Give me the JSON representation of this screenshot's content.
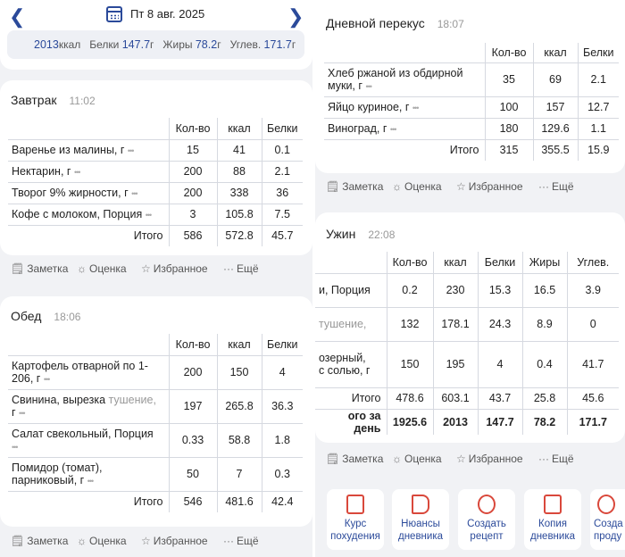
{
  "header": {
    "date": "Пт 8 авг. 2025",
    "summary": {
      "kcal_value": "2013",
      "kcal_unit": "ккал",
      "protein_label": "Белки",
      "protein_value": "147.7",
      "protein_unit": "г",
      "fat_label": "Жиры",
      "fat_value": "78.2",
      "fat_unit": "г",
      "carbs_label": "Углев.",
      "carbs_value": "171.7",
      "carbs_unit": "г"
    }
  },
  "columns": {
    "qty": "Кол-во",
    "kcal": "ккал",
    "protein": "Белки",
    "fat": "Жиры",
    "carbs": "Углев.",
    "total": "Итого",
    "day_total": "ого за день"
  },
  "actions": {
    "note": "Заметка",
    "rate": "Оценка",
    "favorite": "Избранное",
    "more": "Ещё"
  },
  "breakfast": {
    "title": "Завтрак",
    "time": "11:02",
    "rows": [
      {
        "name": "Варенье из малины, г",
        "qty": "15",
        "kcal": "41",
        "protein": "0.1"
      },
      {
        "name": "Нектарин, г",
        "qty": "200",
        "kcal": "88",
        "protein": "2.1"
      },
      {
        "name": "Творог 9% жирности, г",
        "qty": "200",
        "kcal": "338",
        "protein": "36"
      },
      {
        "name": "Кофе с молоком, Порция",
        "qty": "3",
        "kcal": "105.8",
        "protein": "7.5"
      }
    ],
    "total": {
      "qty": "586",
      "kcal": "572.8",
      "protein": "45.7"
    }
  },
  "lunch": {
    "title": "Обед",
    "time": "18:06",
    "rows": [
      {
        "name1": "Картофель отварной по 1-",
        "name2": "206, г",
        "qty": "200",
        "kcal": "150",
        "protein": "4"
      },
      {
        "name1": "Свинина, вырезка",
        "name1b": "тушение,",
        "name2": "г",
        "qty": "197",
        "kcal": "265.8",
        "protein": "36.3"
      },
      {
        "name1": "Салат свекольный, Порция",
        "name2": "",
        "qty": "0.33",
        "kcal": "58.8",
        "protein": "1.8"
      },
      {
        "name1": "Помидор (томат),",
        "name2": "парниковый, г",
        "qty": "50",
        "kcal": "7",
        "protein": "0.3"
      }
    ],
    "total": {
      "qty": "546",
      "kcal": "481.6",
      "protein": "42.4"
    }
  },
  "snack": {
    "title": "Дневной перекус",
    "time": "18:07",
    "rows": [
      {
        "name1": "Хлеб ржаной из обдирной",
        "name2": "муки, г",
        "qty": "35",
        "kcal": "69",
        "protein": "2.1"
      },
      {
        "name1": "Яйцо куриное, г",
        "name2": "",
        "qty": "100",
        "kcal": "157",
        "protein": "12.7"
      },
      {
        "name1": "Виноград, г",
        "name2": "",
        "qty": "180",
        "kcal": "129.6",
        "protein": "1.1"
      }
    ],
    "total": {
      "qty": "315",
      "kcal": "355.5",
      "protein": "15.9"
    }
  },
  "dinner": {
    "title": "Ужин",
    "time": "22:08",
    "rows": [
      {
        "name1": "и, Порция",
        "name2": "",
        "qty": "0.2",
        "kcal": "230",
        "protein": "15.3",
        "fat": "16.5",
        "carbs": "3.9"
      },
      {
        "name1": "тушение,",
        "name2": "",
        "qty": "132",
        "kcal": "178.1",
        "protein": "24.3",
        "fat": "8.9",
        "carbs": "0"
      },
      {
        "name1": "озерный,",
        "name2": "с солью, г",
        "qty": "150",
        "kcal": "195",
        "protein": "4",
        "fat": "0.4",
        "carbs": "41.7"
      }
    ],
    "total": {
      "qty": "478.6",
      "kcal": "603.1",
      "protein": "43.7",
      "fat": "25.8",
      "carbs": "45.6"
    },
    "day_total": {
      "qty": "1925.6",
      "kcal": "2013",
      "protein": "147.7",
      "fat": "78.2",
      "carbs": "171.7"
    }
  },
  "bottom_buttons": [
    {
      "l1": "Курс",
      "l2": "похудения"
    },
    {
      "l1": "Нюансы",
      "l2": "дневника"
    },
    {
      "l1": "Создать",
      "l2": "рецепт"
    },
    {
      "l1": "Копия",
      "l2": "дневника"
    },
    {
      "l1": "Созда",
      "l2": "проду"
    }
  ]
}
